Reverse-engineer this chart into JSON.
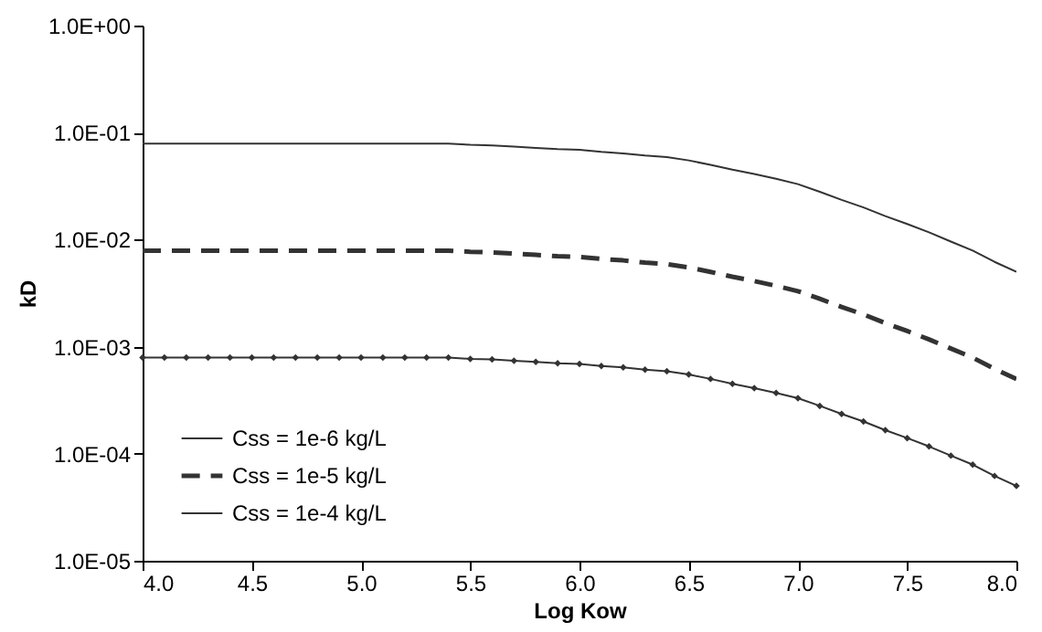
{
  "chart_data": {
    "type": "line",
    "xlabel": "Log Kow",
    "ylabel": "kD",
    "log": "y",
    "legend": "bottom left",
    "grid": false,
    "x": [
      4.0,
      4.1,
      4.2,
      4.3,
      4.4,
      4.5,
      4.6,
      4.7,
      4.8,
      4.9,
      5.0,
      5.1,
      5.2,
      5.3,
      5.4,
      5.5,
      5.6,
      5.7,
      5.8,
      5.9,
      6.0,
      6.1,
      6.2,
      6.3,
      6.4,
      6.5,
      6.6,
      6.7,
      6.8,
      6.9,
      7.0,
      7.1,
      7.2,
      7.3,
      7.4,
      7.5,
      7.6,
      7.7,
      7.8,
      7.9,
      8.0
    ],
    "xlim": [
      4,
      8
    ],
    "xticks": [
      {
        "value": 4,
        "label": "4.0"
      },
      4.5,
      {
        "value": 5,
        "label": "5.0"
      },
      5.5,
      {
        "value": 6,
        "label": "6.0"
      },
      6.5,
      {
        "value": 7,
        "label": "7.0"
      },
      7.5,
      {
        "value": 8,
        "label": "8.0"
      }
    ],
    "ylim": [
      1e-05,
      1
    ],
    "yticks": [
      {
        "value": 1e-05,
        "label": "1.0E-05"
      },
      {
        "value": 0.0001,
        "label": "1.0E-04"
      },
      {
        "value": 0.001,
        "label": "1.0E-03"
      },
      {
        "value": 0.01,
        "label": "1.0E-02"
      },
      {
        "value": 0.1,
        "label": "1.0E-01"
      },
      {
        "value": 1,
        "label": "1.0E+00"
      }
    ],
    "series": [
      {
        "name": "Css = 1e-6 kg/L",
        "color": "#333333",
        "marker": "diamond",
        "line_style": "solid",
        "values": [
          0.00079,
          0.00079,
          0.00079,
          0.00079,
          0.00079,
          0.00079,
          0.00079,
          0.00079,
          0.00079,
          0.00079,
          0.00079,
          0.00079,
          0.00079,
          0.00079,
          0.00079,
          0.00077,
          0.00076,
          0.00074,
          0.00072,
          0.0007,
          0.00069,
          0.00066,
          0.00064,
          0.00061,
          0.00059,
          0.00055,
          0.0005,
          0.00045,
          0.00041,
          0.00037,
          0.00033,
          0.00028,
          0.000235,
          0.0002,
          0.000166,
          0.00014,
          0.000117,
          9.6e-05,
          7.9e-05,
          6.2e-05,
          5e-05
        ]
      },
      {
        "name": "Css = 1e-5 kg/L",
        "color": "#333333",
        "marker": "none",
        "line_style": "dashed",
        "values": [
          0.0079,
          0.0079,
          0.0079,
          0.0079,
          0.0079,
          0.0079,
          0.0079,
          0.0079,
          0.0079,
          0.0079,
          0.0079,
          0.0079,
          0.0079,
          0.0079,
          0.0079,
          0.0077,
          0.0076,
          0.0074,
          0.0072,
          0.007,
          0.0069,
          0.0066,
          0.0064,
          0.0061,
          0.0059,
          0.0055,
          0.005,
          0.0045,
          0.0041,
          0.0037,
          0.0033,
          0.0028,
          0.00235,
          0.002,
          0.00166,
          0.0014,
          0.00117,
          0.00096,
          0.00079,
          0.00062,
          0.0005
        ]
      },
      {
        "name": "Css = 1e-4 kg/L",
        "color": "#333333",
        "marker": "none",
        "line_style": "solid",
        "values": [
          0.079,
          0.079,
          0.079,
          0.079,
          0.079,
          0.079,
          0.079,
          0.079,
          0.079,
          0.079,
          0.079,
          0.079,
          0.079,
          0.079,
          0.079,
          0.077,
          0.076,
          0.074,
          0.072,
          0.07,
          0.069,
          0.066,
          0.064,
          0.061,
          0.059,
          0.055,
          0.05,
          0.045,
          0.041,
          0.037,
          0.033,
          0.028,
          0.0235,
          0.02,
          0.0166,
          0.014,
          0.0117,
          0.0096,
          0.0079,
          0.0062,
          0.005
        ]
      }
    ]
  }
}
